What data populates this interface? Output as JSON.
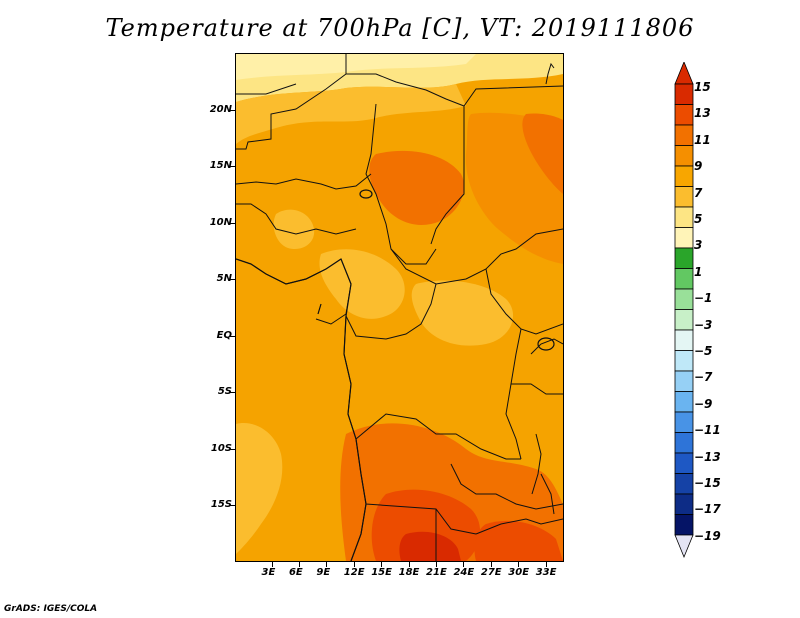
{
  "title": "Temperature at 700hPa [C], VT: 2019111806",
  "footer": "GrADS: IGES/COLA",
  "map": {
    "projection": "latlon",
    "lon_range": [
      -1,
      35
    ],
    "lat_range": [
      -20,
      25
    ],
    "lat_ticks": [
      "20N",
      "15N",
      "10N",
      "5N",
      "EQ",
      "5S",
      "10S",
      "15S"
    ],
    "lon_ticks": [
      "3E",
      "6E",
      "9E",
      "12E",
      "15E",
      "18E",
      "21E",
      "24E",
      "27E",
      "30E",
      "33E"
    ],
    "variable": "temperature",
    "unit": "C",
    "level": "700hPa",
    "valid_time": "2019111806"
  },
  "colorbar": {
    "labels": [
      "15",
      "13",
      "11",
      "9",
      "7",
      "5",
      "3",
      "1",
      "−1",
      "−3",
      "−5",
      "−7",
      "−9",
      "−11",
      "−13",
      "−15",
      "−17",
      "−19"
    ],
    "colors": [
      "#d92a00",
      "#ec4c00",
      "#f27100",
      "#f58f00",
      "#f8a600",
      "#fbbd2e",
      "#fde584",
      "#fff4b8",
      "#2aa52a",
      "#62c862",
      "#99e099",
      "#c8f0c8",
      "#e4f6f4",
      "#bfe8f8",
      "#96d0f5",
      "#6ab4f0",
      "#4893e6",
      "#2e74d8",
      "#1e58c4",
      "#1542a6",
      "#0d2c86",
      "#051466",
      "#e4e4f4"
    ],
    "top_color": "#d92a00",
    "bottom_color": "#e4e4f4"
  }
}
